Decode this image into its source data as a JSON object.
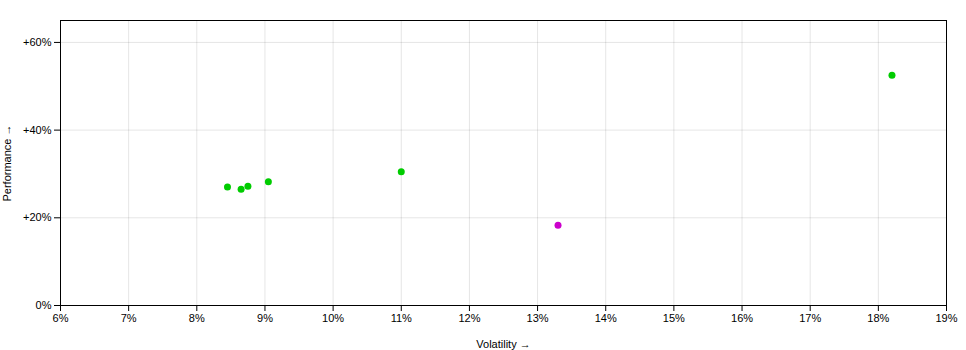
{
  "chart_data": {
    "type": "scatter",
    "xlabel": "Volatility",
    "ylabel": "Performance",
    "series": [
      {
        "color": "#00cc00",
        "marker": "circle",
        "x": [
          0.0845,
          0.0865,
          0.0875,
          0.0905,
          0.11,
          0.182
        ],
        "values": [
          0.27,
          0.265,
          0.272,
          0.282,
          0.305,
          0.525
        ]
      },
      {
        "color": "#cc00cc",
        "marker": "circle",
        "x": [
          0.133
        ],
        "values": [
          0.183
        ]
      }
    ],
    "xlim": [
      0.06,
      0.19
    ],
    "ylim": [
      0.0,
      0.65
    ],
    "xticks": [
      {
        "value": 0.06,
        "label": "6%"
      },
      {
        "value": 0.07,
        "label": "7%"
      },
      {
        "value": 0.08,
        "label": "8%"
      },
      {
        "value": 0.09,
        "label": "9%"
      },
      {
        "value": 0.1,
        "label": "10%"
      },
      {
        "value": 0.11,
        "label": "11%"
      },
      {
        "value": 0.12,
        "label": "12%"
      },
      {
        "value": 0.13,
        "label": "13%"
      },
      {
        "value": 0.14,
        "label": "14%"
      },
      {
        "value": 0.15,
        "label": "15%"
      },
      {
        "value": 0.16,
        "label": "16%"
      },
      {
        "value": 0.17,
        "label": "17%"
      },
      {
        "value": 0.18,
        "label": "18%"
      },
      {
        "value": 0.19,
        "label": "19%"
      }
    ],
    "yticks": [
      {
        "value": 0.0,
        "label": "0%"
      },
      {
        "value": 0.2,
        "label": "+20%"
      },
      {
        "value": 0.4,
        "label": "+40%"
      },
      {
        "value": 0.6,
        "label": "+60%"
      }
    ],
    "grid": true
  }
}
